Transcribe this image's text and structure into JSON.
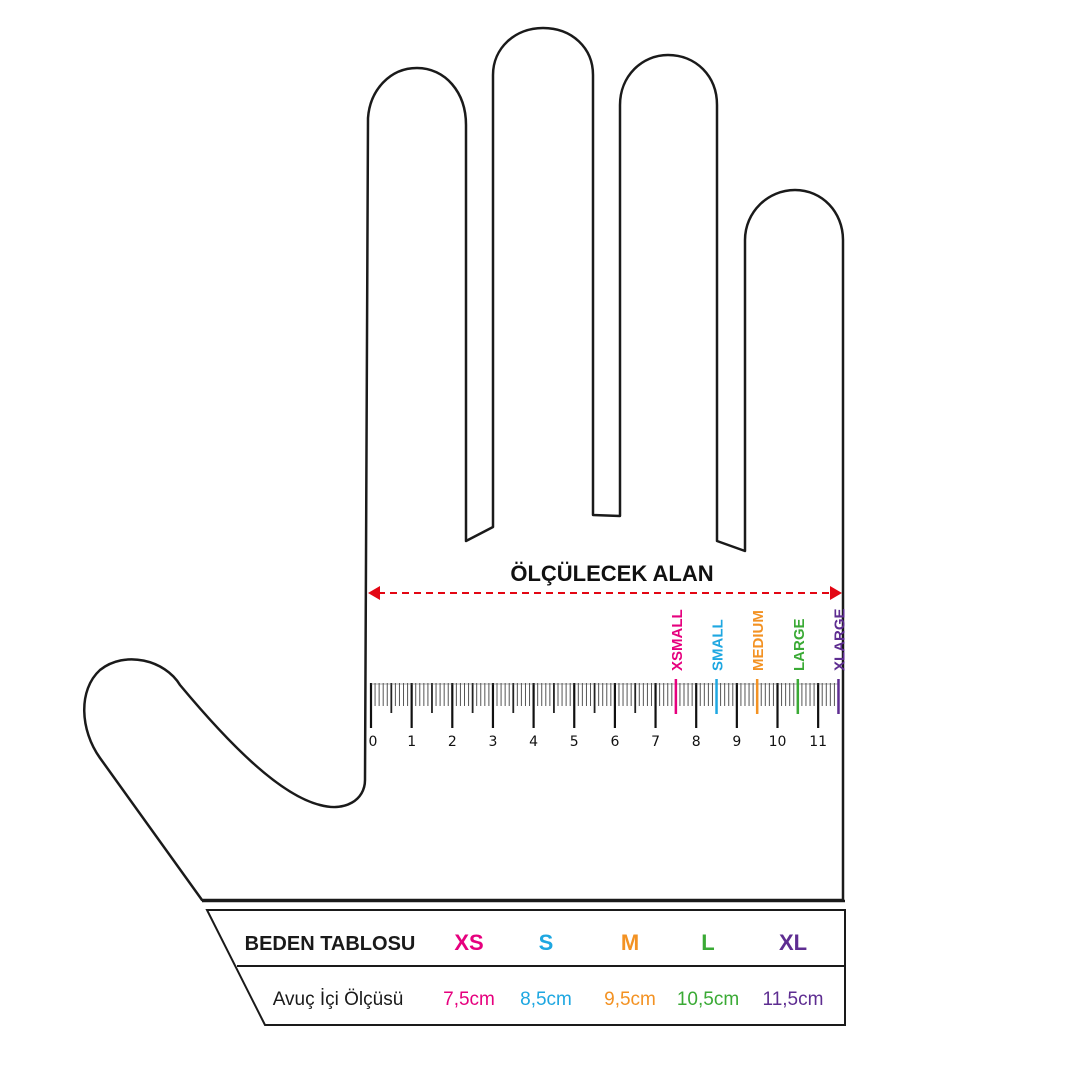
{
  "measure_label": "ÖLÇÜLECEK ALAN",
  "ruler": {
    "unit": "cm",
    "range": [
      0,
      11.5
    ],
    "tick_labels": [
      "0",
      "1",
      "2",
      "3",
      "4",
      "5",
      "6",
      "7",
      "8",
      "9",
      "10",
      "11"
    ]
  },
  "size_markers": [
    {
      "label": "XSMALL",
      "value": 7.5,
      "color": "#e6007e"
    },
    {
      "label": "SMALL",
      "value": 8.5,
      "color": "#1ea7e1"
    },
    {
      "label": "MEDIUM",
      "value": 9.5,
      "color": "#f39223"
    },
    {
      "label": "LARGE",
      "value": 10.5,
      "color": "#3aaa35"
    },
    {
      "label": "XLARGE",
      "value": 11.5,
      "color": "#5e2d91"
    }
  ],
  "table": {
    "header_label": "BEDEN TABLOSU",
    "row_label": "Avuç İçi Ölçüsü",
    "columns": [
      {
        "size": "XS",
        "value": "7,5cm",
        "color": "#e6007e"
      },
      {
        "size": "S",
        "value": "8,5cm",
        "color": "#1ea7e1"
      },
      {
        "size": "M",
        "value": "9,5cm",
        "color": "#f39223"
      },
      {
        "size": "L",
        "value": "10,5cm",
        "color": "#3aaa35"
      },
      {
        "size": "XL",
        "value": "11,5cm",
        "color": "#5e2d91"
      }
    ]
  },
  "colors": {
    "outline": "#1a1a1a",
    "arrow": "#e30613"
  }
}
